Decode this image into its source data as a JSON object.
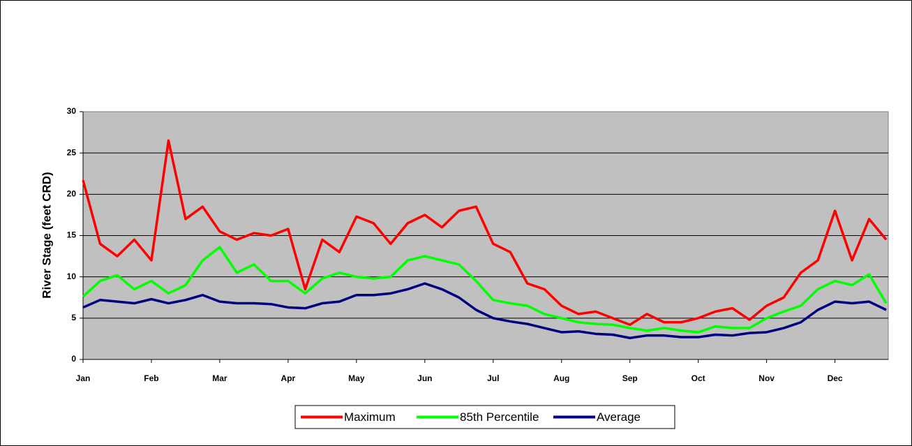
{
  "chart_data": {
    "type": "line",
    "y_label": "River Stage (feet CRD)",
    "x": [
      0,
      0.25,
      0.5,
      0.75,
      1,
      1.25,
      1.5,
      1.75,
      2,
      2.25,
      2.5,
      2.75,
      3,
      3.25,
      3.5,
      3.75,
      4,
      4.25,
      4.5,
      4.75,
      5,
      5.25,
      5.5,
      5.75,
      6,
      6.25,
      6.5,
      6.75,
      7,
      7.25,
      7.5,
      7.75,
      8,
      8.25,
      8.5,
      8.75,
      9,
      9.25,
      9.5,
      9.75,
      10,
      10.25,
      10.5,
      10.75,
      11,
      11.25,
      11.5,
      11.75
    ],
    "series": [
      {
        "name": "Maximum",
        "color": "#ff0000",
        "values": [
          21.7,
          14,
          12.5,
          14.5,
          12,
          26.5,
          17,
          18.5,
          15.5,
          14.5,
          15.3,
          15,
          15.8,
          8.5,
          14.5,
          13,
          17.3,
          16.5,
          14,
          16.5,
          17.5,
          16,
          18,
          18.5,
          14,
          13,
          9.2,
          8.5,
          6.5,
          5.5,
          5.8,
          5,
          4.2,
          5.5,
          4.5,
          4.5,
          5,
          5.8,
          6.2,
          4.8,
          6.5,
          7.5,
          10.5,
          12,
          18,
          12,
          17,
          14.5
        ]
      },
      {
        "name": "85th Percentile",
        "color": "#00ff00",
        "values": [
          7.6,
          9.5,
          10.2,
          8.5,
          9.5,
          8,
          9,
          12,
          13.6,
          10.5,
          11.5,
          9.5,
          9.5,
          8,
          9.8,
          10.5,
          10,
          9.8,
          10,
          12,
          12.5,
          12,
          11.5,
          9.5,
          7.2,
          6.8,
          6.5,
          5.5,
          5,
          4.5,
          4.3,
          4.2,
          3.8,
          3.5,
          3.8,
          3.5,
          3.3,
          4,
          3.8,
          3.8,
          5,
          5.8,
          6.5,
          8.5,
          9.5,
          9,
          10.3,
          6.8
        ]
      },
      {
        "name": "Average",
        "color": "#000080",
        "values": [
          6.3,
          7.2,
          7,
          6.8,
          7.3,
          6.8,
          7.2,
          7.8,
          7,
          6.8,
          6.8,
          6.7,
          6.3,
          6.2,
          6.8,
          7,
          7.8,
          7.8,
          8,
          8.5,
          9.2,
          8.5,
          7.5,
          6,
          5,
          4.6,
          4.3,
          3.8,
          3.3,
          3.4,
          3.1,
          3,
          2.6,
          2.9,
          2.9,
          2.7,
          2.7,
          3,
          2.9,
          3.2,
          3.3,
          3.8,
          4.5,
          6,
          7,
          6.8,
          7,
          6
        ]
      }
    ],
    "xlim": [
      0,
      11.78
    ],
    "xticks": [
      {
        "value": 0,
        "label": "Jan"
      },
      {
        "value": 1,
        "label": "Feb"
      },
      {
        "value": 2,
        "label": "Mar"
      },
      {
        "value": 3,
        "label": "Apr"
      },
      {
        "value": 4,
        "label": "May"
      },
      {
        "value": 5,
        "label": "Jun"
      },
      {
        "value": 6,
        "label": "Jul"
      },
      {
        "value": 7,
        "label": "Aug"
      },
      {
        "value": 8,
        "label": "Sep"
      },
      {
        "value": 9,
        "label": "Oct"
      },
      {
        "value": 10,
        "label": "Nov"
      },
      {
        "value": 11,
        "label": "Dec"
      }
    ],
    "ylim": [
      0,
      30
    ],
    "yticks": [
      0,
      5,
      10,
      15,
      20,
      25,
      30
    ],
    "grid": true,
    "legend": "bottom"
  }
}
